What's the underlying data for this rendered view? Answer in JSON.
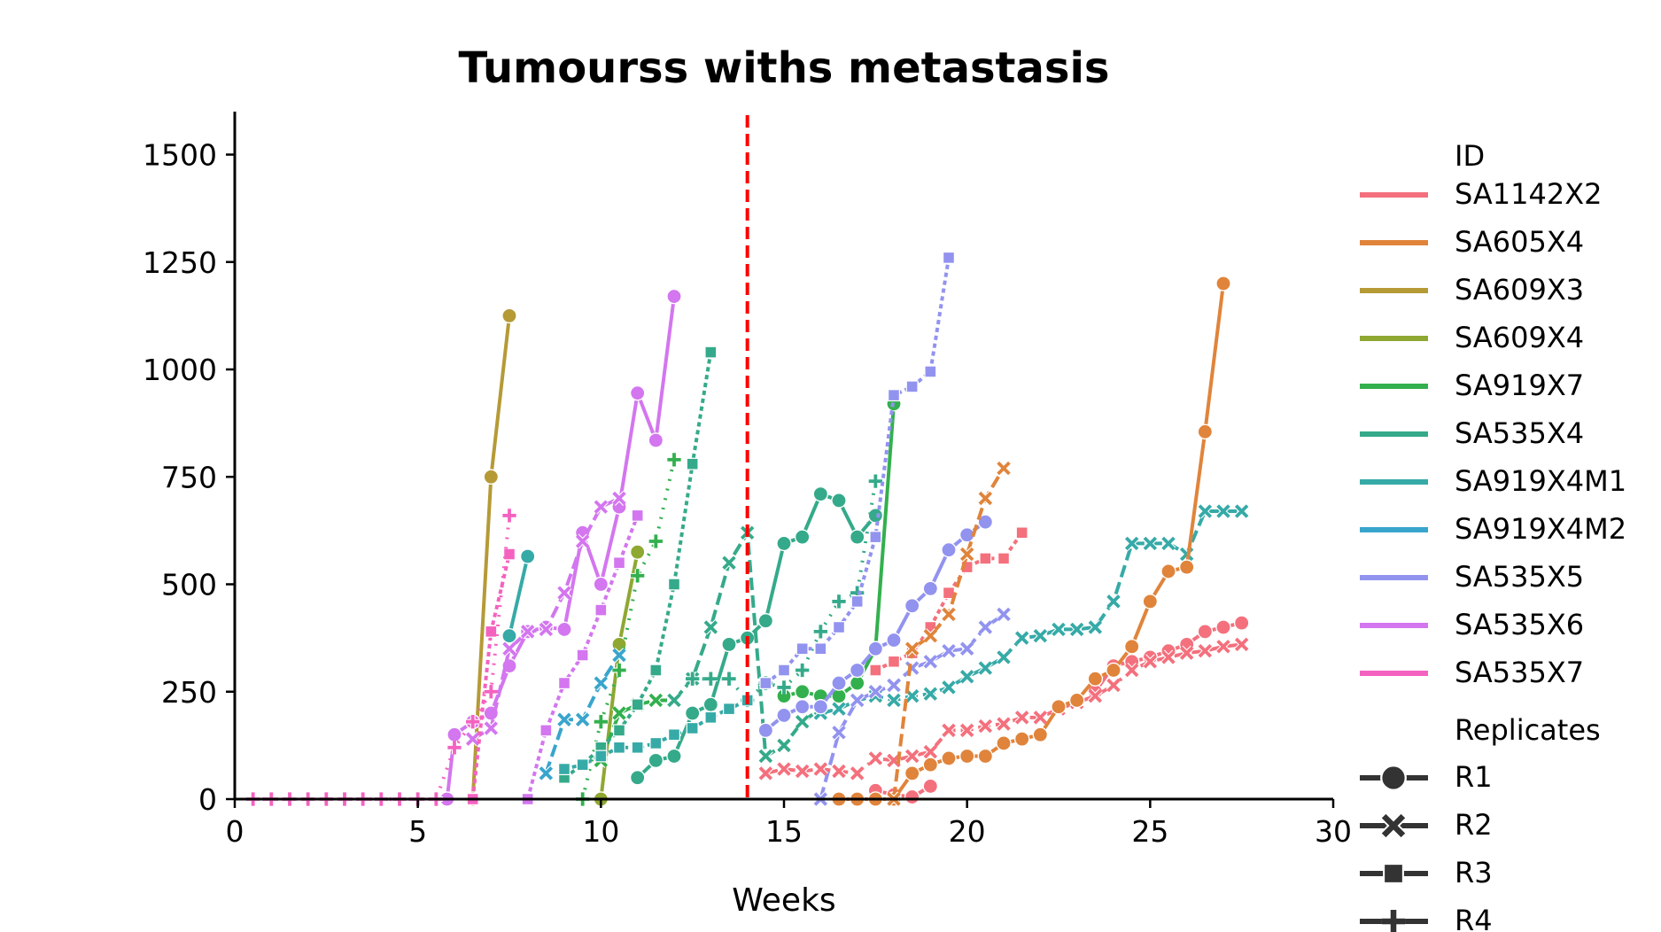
{
  "chart_data": {
    "type": "line",
    "title": "Tumourss withs metastasis",
    "xlabel": "Weeks",
    "ylabel": "",
    "xlim": [
      0,
      30
    ],
    "ylim": [
      0,
      1600
    ],
    "xticks": [
      0,
      5,
      10,
      15,
      20,
      25,
      30
    ],
    "yticks": [
      0,
      250,
      500,
      750,
      1000,
      1250,
      1500
    ],
    "grid": false,
    "reference_line": {
      "x": 14,
      "color": "#ff0000",
      "style": "dashed"
    },
    "legend": {
      "placement": "right",
      "id_title": "ID",
      "replicate_title": "Replicates",
      "ids": [
        {
          "name": "SA1142X2",
          "color": "#f4707d"
        },
        {
          "name": "SA605X4",
          "color": "#e0843b"
        },
        {
          "name": "SA609X3",
          "color": "#b59a36"
        },
        {
          "name": "SA609X4",
          "color": "#8ea832"
        },
        {
          "name": "SA919X7",
          "color": "#33b04e"
        },
        {
          "name": "SA535X4",
          "color": "#35aa8a"
        },
        {
          "name": "SA919X4M1",
          "color": "#36aaa7"
        },
        {
          "name": "SA919X4M2",
          "color": "#39a5cc"
        },
        {
          "name": "SA535X5",
          "color": "#9293ef"
        },
        {
          "name": "SA535X6",
          "color": "#d376ef"
        },
        {
          "name": "SA535X7",
          "color": "#f462c0"
        }
      ],
      "replicates": [
        {
          "name": "R1",
          "marker": "circle"
        },
        {
          "name": "R2",
          "marker": "x"
        },
        {
          "name": "R3",
          "marker": "square"
        },
        {
          "name": "R4",
          "marker": "plus"
        }
      ]
    },
    "series": [
      {
        "id": "SA609X3",
        "replicate": "R1",
        "x": [
          6.5,
          7,
          7.5
        ],
        "y": [
          0,
          750,
          1125
        ]
      },
      {
        "id": "SA609X4",
        "replicate": "R1",
        "x": [
          10,
          10.5,
          11
        ],
        "y": [
          0,
          360,
          575
        ]
      },
      {
        "id": "SA919X7",
        "replicate": "R1",
        "x": [
          15,
          15.5,
          16,
          16.5,
          17,
          17.5,
          18
        ],
        "y": [
          240,
          250,
          240,
          240,
          270,
          350,
          920
        ]
      },
      {
        "id": "SA919X7",
        "replicate": "R2",
        "x": [
          10,
          10.5,
          11,
          11.5,
          12
        ],
        "y": [
          90,
          200,
          220,
          230,
          230
        ]
      },
      {
        "id": "SA919X7",
        "replicate": "R4",
        "x": [
          9.5,
          10,
          10.5,
          11,
          11.5,
          12
        ],
        "y": [
          0,
          180,
          300,
          520,
          600,
          790
        ]
      },
      {
        "id": "SA535X4",
        "replicate": "R1",
        "x": [
          11,
          11.5,
          12,
          12.5,
          13,
          13.5,
          14,
          14.5,
          15,
          15.5,
          16,
          16.5,
          17,
          17.5
        ],
        "y": [
          50,
          90,
          100,
          200,
          220,
          360,
          375,
          415,
          595,
          610,
          710,
          695,
          610,
          660
        ]
      },
      {
        "id": "SA535X4",
        "replicate": "R2",
        "x": [
          12,
          12.5,
          13,
          13.5,
          14,
          14.5,
          15,
          15.5,
          16
        ],
        "y": [
          230,
          280,
          400,
          550,
          620,
          100,
          125,
          180,
          210
        ]
      },
      {
        "id": "SA535X4",
        "replicate": "R3",
        "x": [
          9,
          9.5,
          10,
          10.5,
          11,
          11.5,
          12,
          12.5,
          13
        ],
        "y": [
          50,
          80,
          120,
          160,
          220,
          300,
          500,
          780,
          1040
        ]
      },
      {
        "id": "SA535X4",
        "replicate": "R4",
        "x": [
          12.5,
          13,
          13.5,
          14,
          14.5,
          15,
          15.5,
          16,
          16.5,
          17,
          17.5
        ],
        "y": [
          280,
          280,
          280,
          230,
          270,
          260,
          300,
          390,
          460,
          480,
          740
        ]
      },
      {
        "id": "SA919X4M1",
        "replicate": "R1",
        "x": [
          7.5,
          8
        ],
        "y": [
          380,
          565
        ]
      },
      {
        "id": "SA919X4M1",
        "replicate": "R2",
        "x": [
          16,
          16.5,
          17,
          17.5,
          18,
          18.5,
          19,
          19.5,
          20,
          20.5,
          21,
          21.5,
          22,
          22.5,
          23,
          23.5,
          24,
          24.5,
          25,
          25.5,
          26,
          26.5,
          27,
          27.5
        ],
        "y": [
          200,
          210,
          230,
          240,
          230,
          240,
          245,
          260,
          285,
          305,
          330,
          375,
          380,
          395,
          395,
          400,
          460,
          595,
          595,
          595,
          570,
          670,
          670,
          670
        ]
      },
      {
        "id": "SA919X4M1",
        "replicate": "R3",
        "x": [
          9,
          9.5,
          10,
          10.5,
          11,
          11.5,
          12,
          12.5,
          13,
          13.5,
          14
        ],
        "y": [
          70,
          80,
          100,
          120,
          120,
          130,
          150,
          165,
          190,
          210,
          230
        ]
      },
      {
        "id": "SA919X4M2",
        "replicate": "R2",
        "x": [
          8.5,
          9,
          9.5,
          10,
          10.5
        ],
        "y": [
          60,
          185,
          185,
          270,
          335
        ]
      },
      {
        "id": "SA535X5",
        "replicate": "R1",
        "x": [
          14.5,
          15,
          15.5,
          16,
          16.5,
          17,
          17.5,
          18,
          18.5,
          19,
          19.5,
          20,
          20.5
        ],
        "y": [
          160,
          195,
          215,
          215,
          270,
          300,
          350,
          370,
          450,
          490,
          580,
          615,
          645
        ]
      },
      {
        "id": "SA535X5",
        "replicate": "R2",
        "x": [
          16,
          16.5,
          17,
          17.5,
          18,
          18.5,
          19,
          19.5,
          20,
          20.5,
          21
        ],
        "y": [
          0,
          155,
          230,
          250,
          265,
          305,
          320,
          345,
          350,
          400,
          430
        ]
      },
      {
        "id": "SA535X5",
        "replicate": "R3",
        "x": [
          14.5,
          15,
          15.5,
          16,
          16.5,
          17,
          17.5,
          18,
          18.5,
          19,
          19.5
        ],
        "y": [
          270,
          300,
          350,
          350,
          400,
          460,
          610,
          940,
          960,
          995,
          1260
        ]
      },
      {
        "id": "SA535X6",
        "replicate": "R1",
        "x": [
          5.8,
          6,
          6.5,
          7,
          7.5,
          8,
          8.5,
          9,
          9.5,
          10,
          10.5,
          11,
          11.5,
          12
        ],
        "y": [
          0,
          150,
          180,
          200,
          310,
          390,
          400,
          395,
          620,
          500,
          680,
          945,
          835,
          1170
        ]
      },
      {
        "id": "SA535X6",
        "replicate": "R2",
        "x": [
          6.5,
          7,
          7.5,
          8,
          8.5,
          9,
          9.5,
          10,
          10.5
        ],
        "y": [
          140,
          165,
          350,
          390,
          395,
          480,
          600,
          680,
          700
        ]
      },
      {
        "id": "SA535X6",
        "replicate": "R3",
        "x": [
          8,
          8.5,
          9,
          9.5,
          10,
          10.5,
          11
        ],
        "y": [
          0,
          160,
          270,
          335,
          440,
          550,
          660
        ]
      },
      {
        "id": "SA535X7",
        "replicate": "R3",
        "x": [
          6.5,
          7,
          7.5
        ],
        "y": [
          0,
          390,
          570
        ]
      },
      {
        "id": "SA535X7",
        "replicate": "R4",
        "x": [
          0.5,
          1,
          1.5,
          2,
          2.5,
          3,
          3.5,
          4,
          4.5,
          5,
          5.5,
          6,
          6.5,
          7,
          7.5
        ],
        "y": [
          0,
          0,
          0,
          0,
          0,
          0,
          0,
          0,
          0,
          0,
          0,
          120,
          180,
          250,
          660
        ]
      },
      {
        "id": "SA1142X2",
        "replicate": "R1",
        "x": [
          17.5,
          18,
          18.5,
          19
        ],
        "y": [
          20,
          10,
          5,
          30
        ]
      },
      {
        "id": "SA1142X2",
        "replicate": "R1",
        "x": [
          23.5,
          24,
          24.5,
          25,
          25.5,
          26,
          26.5,
          27,
          27.5
        ],
        "y": [
          250,
          310,
          320,
          330,
          345,
          360,
          390,
          400,
          410
        ]
      },
      {
        "id": "SA1142X2",
        "replicate": "R2",
        "x": [
          14.5,
          15,
          15.5,
          16,
          16.5,
          17,
          17.5,
          18,
          18.5,
          19,
          19.5,
          20,
          20.5,
          21,
          21.5,
          22,
          22.5,
          23,
          23.5,
          24,
          24.5,
          25,
          25.5,
          26,
          26.5,
          27,
          27.5
        ],
        "y": [
          60,
          70,
          65,
          70,
          65,
          60,
          95,
          90,
          100,
          110,
          160,
          160,
          170,
          175,
          190,
          190,
          210,
          225,
          240,
          265,
          300,
          320,
          330,
          340,
          345,
          355,
          360
        ]
      },
      {
        "id": "SA1142X2",
        "replicate": "R3",
        "x": [
          17.5,
          18,
          18.5,
          19,
          19.5,
          20,
          20.5,
          21,
          21.5
        ],
        "y": [
          300,
          320,
          340,
          400,
          480,
          540,
          560,
          560,
          620
        ]
      },
      {
        "id": "SA605X4",
        "replicate": "R1",
        "x": [
          16.5,
          17,
          17.5,
          18,
          18.5,
          19,
          19.5,
          20,
          20.5,
          21,
          21.5,
          22,
          22.5,
          23,
          23.5,
          24,
          24.5,
          25,
          25.5,
          26,
          26.5,
          27
        ],
        "y": [
          0,
          0,
          0,
          0,
          60,
          80,
          95,
          100,
          100,
          130,
          140,
          150,
          215,
          230,
          280,
          300,
          355,
          460,
          530,
          540,
          855,
          1200
        ]
      },
      {
        "id": "SA605X4",
        "replicate": "R2",
        "x": [
          18,
          18.5,
          19,
          19.5,
          20,
          20.5,
          21
        ],
        "y": [
          0,
          350,
          380,
          430,
          570,
          700,
          770
        ]
      }
    ]
  }
}
